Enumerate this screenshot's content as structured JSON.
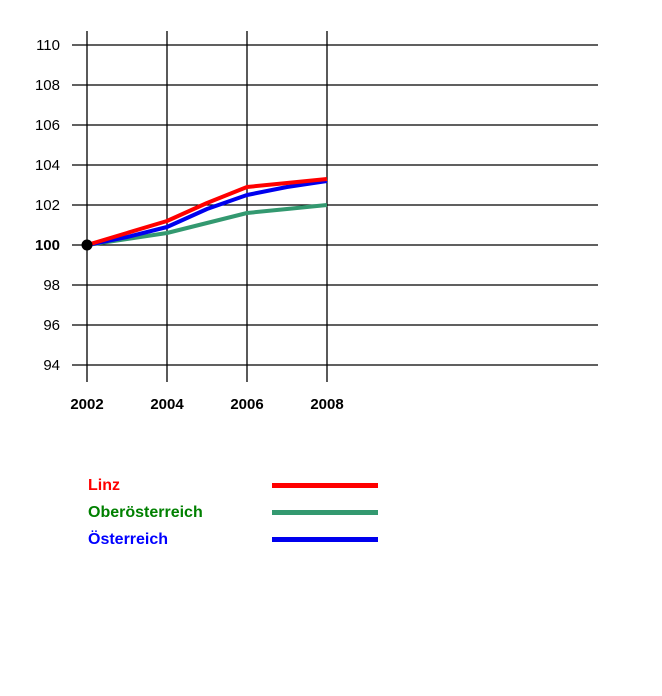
{
  "chart_data": {
    "type": "line",
    "title": "",
    "xlabel": "",
    "ylabel": "",
    "x": [
      2002,
      2003,
      2004,
      2005,
      2006,
      2007,
      2008
    ],
    "x_ticks": [
      2002,
      2004,
      2006,
      2008
    ],
    "x_tick_labels": [
      "2002",
      "2004",
      "2006",
      "2008"
    ],
    "y_ticks": [
      94,
      96,
      98,
      100,
      102,
      104,
      106,
      108,
      110
    ],
    "ylim": [
      93,
      111
    ],
    "xlim": [
      2002,
      2008
    ],
    "grid": true,
    "grid_color": "#000000",
    "tick_label_color": "#000000",
    "bold_y_tick": 100,
    "baseline_value": 100,
    "start_marker": {
      "x": 2002,
      "y": 100,
      "color": "#000000"
    },
    "legend_position": "bottom-left",
    "series": [
      {
        "name": "Oberösterreich",
        "color": "#339970",
        "values": [
          100,
          100.3,
          100.6,
          101.1,
          101.6,
          101.8,
          102.0
        ]
      },
      {
        "name": "Österreich",
        "color": "#0000ee",
        "values": [
          100,
          100.4,
          100.9,
          101.8,
          102.5,
          102.9,
          103.2
        ]
      },
      {
        "name": "Linz",
        "color": "#ff0000",
        "values": [
          100,
          100.6,
          101.2,
          102.1,
          102.9,
          103.1,
          103.3
        ]
      }
    ]
  },
  "legend": {
    "items": [
      {
        "label": "Linz",
        "label_color": "#ff0000",
        "line_color": "#ff0000"
      },
      {
        "label": "Oberösterreich",
        "label_color": "#008000",
        "line_color": "#339970"
      },
      {
        "label": "Österreich",
        "label_color": "#0000ff",
        "line_color": "#0000ee"
      }
    ]
  },
  "colors": {
    "background": "#ffffff",
    "grid": "#000000"
  }
}
